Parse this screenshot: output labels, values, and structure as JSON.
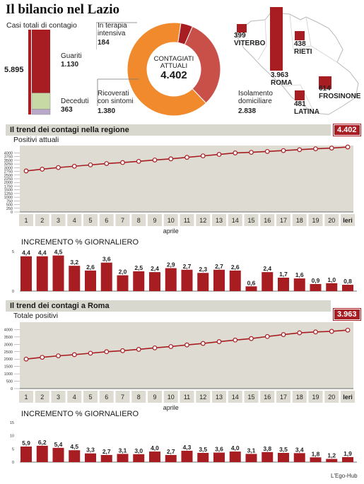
{
  "title": "Il bilancio nel Lazio",
  "totals": {
    "label": "Casi totali di contagio",
    "total": "5.895",
    "guariti_label": "Guariti",
    "guariti_value": "1.130",
    "deceduti_label": "Deceduti",
    "deceduti_value": "363",
    "bar_fractions": {
      "attuali": 0.7468,
      "guariti": 0.1917,
      "deceduti": 0.0616
    }
  },
  "donut": {
    "center_label_1": "CONTAGIATI",
    "center_label_2": "ATTUALI",
    "center_value": "4.402",
    "terapia_label_1": "In terapia",
    "terapia_label_2": "intensiva",
    "terapia_value": "184",
    "ricoverati_label_1": "Ricoverati",
    "ricoverati_label_2": "con sintomi",
    "ricoverati_value": "1.380",
    "isolamento_label_1": "Isolamento",
    "isolamento_label_2": "domiciliare",
    "isolamento_value": "2.838",
    "values": [
      184,
      1380,
      2838
    ],
    "colors": [
      "#a81d22",
      "#c95049",
      "#f08a2c"
    ]
  },
  "provinces": [
    {
      "name": "VITERBO",
      "value": "399"
    },
    {
      "name": "RIETI",
      "value": "438"
    },
    {
      "name": "ROMA",
      "value": "3.963"
    },
    {
      "name": "FROSINONE",
      "value": "614"
    },
    {
      "name": "LATINA",
      "value": "481"
    }
  ],
  "trend_regione": {
    "heading": "Il trend dei contagi nella regione",
    "subtitle": "Positivi attuali",
    "badge": "4.402",
    "axis_label": "aprile",
    "incremento_title": "INCREMENTO % GIORNALIERO"
  },
  "trend_roma": {
    "heading": "Il trend dei contagi a Roma",
    "subtitle": "Totale positivi",
    "badge": "3.963",
    "axis_label": "aprile",
    "incremento_title": "INCREMENTO % GIORNALIERO"
  },
  "credit": "L'Ego-Hub",
  "chart_data": [
    {
      "type": "line",
      "title": "Il trend dei contagi nella regione",
      "ylabel": "Positivi attuali",
      "xlabel": "aprile",
      "categories": [
        "1",
        "2",
        "3",
        "4",
        "5",
        "6",
        "7",
        "8",
        "9",
        "10",
        "11",
        "12",
        "13",
        "14",
        "15",
        "16",
        "17",
        "18",
        "19",
        "20",
        "Ieri"
      ],
      "values": [
        2780,
        2900,
        3010,
        3100,
        3190,
        3280,
        3350,
        3430,
        3520,
        3600,
        3700,
        3800,
        3900,
        4000,
        4040,
        4100,
        4160,
        4220,
        4280,
        4330,
        4402
      ],
      "ylim": [
        0,
        4500
      ],
      "yticks": [
        0,
        250,
        500,
        750,
        1000,
        1250,
        1500,
        1750,
        2000,
        2250,
        2500,
        2750,
        3000,
        3250,
        3500,
        3750,
        4000
      ]
    },
    {
      "type": "bar",
      "title": "INCREMENTO % GIORNALIERO",
      "categories": [
        "1",
        "2",
        "3",
        "4",
        "5",
        "6",
        "7",
        "8",
        "9",
        "10",
        "11",
        "12",
        "13",
        "14",
        "15",
        "16",
        "17",
        "18",
        "19",
        "20",
        "Ieri"
      ],
      "values": [
        4.4,
        4.4,
        4.5,
        3.2,
        2.6,
        3.6,
        2.0,
        2.5,
        2.4,
        2.9,
        2.7,
        2.3,
        2.7,
        2.6,
        0.6,
        2.4,
        1.7,
        1.6,
        0.9,
        1.0,
        0.8
      ],
      "labels": [
        "4,4",
        "4,4",
        "4,5",
        "3,2",
        "2,6",
        "3,6",
        "2,0",
        "2,5",
        "2,4",
        "2,9",
        "2,7",
        "2,3",
        "2,7",
        "2,6",
        "0,6",
        "2,4",
        "1,7",
        "1,6",
        "0,9",
        "1,0",
        "0,8"
      ],
      "ylim": [
        0,
        5
      ],
      "yticks": [
        0,
        5
      ]
    },
    {
      "type": "line",
      "title": "Il trend dei contagi a Roma",
      "ylabel": "Totale positivi",
      "xlabel": "aprile",
      "categories": [
        "1",
        "2",
        "3",
        "4",
        "5",
        "6",
        "7",
        "8",
        "9",
        "10",
        "11",
        "12",
        "13",
        "14",
        "15",
        "16",
        "17",
        "18",
        "19",
        "20",
        "Ieri"
      ],
      "values": [
        2000,
        2120,
        2220,
        2300,
        2400,
        2500,
        2570,
        2660,
        2760,
        2850,
        2960,
        3060,
        3180,
        3290,
        3390,
        3530,
        3660,
        3780,
        3840,
        3880,
        3963
      ],
      "ylim": [
        0,
        4500
      ],
      "yticks": [
        0,
        500,
        1000,
        1500,
        2000,
        2500,
        3000,
        3500,
        4000
      ]
    },
    {
      "type": "bar",
      "title": "INCREMENTO % GIORNALIERO",
      "categories": [
        "1",
        "2",
        "3",
        "4",
        "5",
        "6",
        "7",
        "8",
        "9",
        "10",
        "11",
        "12",
        "13",
        "14",
        "15",
        "16",
        "17",
        "18",
        "19",
        "20",
        "Ieri"
      ],
      "values": [
        5.9,
        6.2,
        5.4,
        4.5,
        3.3,
        2.7,
        3.1,
        3.0,
        4.0,
        2.7,
        4.3,
        3.5,
        3.6,
        4.0,
        3.1,
        3.8,
        3.5,
        3.4,
        1.8,
        1.2,
        1.9
      ],
      "labels": [
        "5,9",
        "6,2",
        "5,4",
        "4,5",
        "3,3",
        "2,7",
        "3,1",
        "3,0",
        "4,0",
        "2,7",
        "4,3",
        "3,5",
        "3,6",
        "4,0",
        "3,1",
        "3,8",
        "3,5",
        "3,4",
        "1,8",
        "1,2",
        "1,9"
      ],
      "ylim": [
        0,
        15
      ],
      "yticks": [
        0,
        5,
        10,
        15
      ]
    }
  ]
}
